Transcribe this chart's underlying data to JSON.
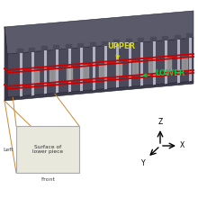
{
  "bg_color": "#ffffff",
  "upper_label": "UPPER",
  "lower_label": "LOWER",
  "upper_color": "#dddd00",
  "lower_color": "#00cc44",
  "red_line_color": "#cc0000",
  "inset_text": "Surface of\nlower piece",
  "left_label": "Left",
  "front_label": "Front",
  "axis_x_label": "X",
  "axis_y_label": "Y",
  "axis_z_label": "Z",
  "figsize": [
    2.2,
    2.2
  ],
  "dpi": 100,
  "beam_top_face": "#5a5a6a",
  "beam_front_face": "#4a4a5a",
  "beam_left_face": "#3a3a48",
  "beam_bottom_face": "#3a3a48",
  "rib_color": "#888899",
  "rib_light": "#b0b0c0",
  "conn_color": "#cc8833",
  "inset_bg": "#e8e8dc",
  "inset_edge": "#aaaaaa"
}
